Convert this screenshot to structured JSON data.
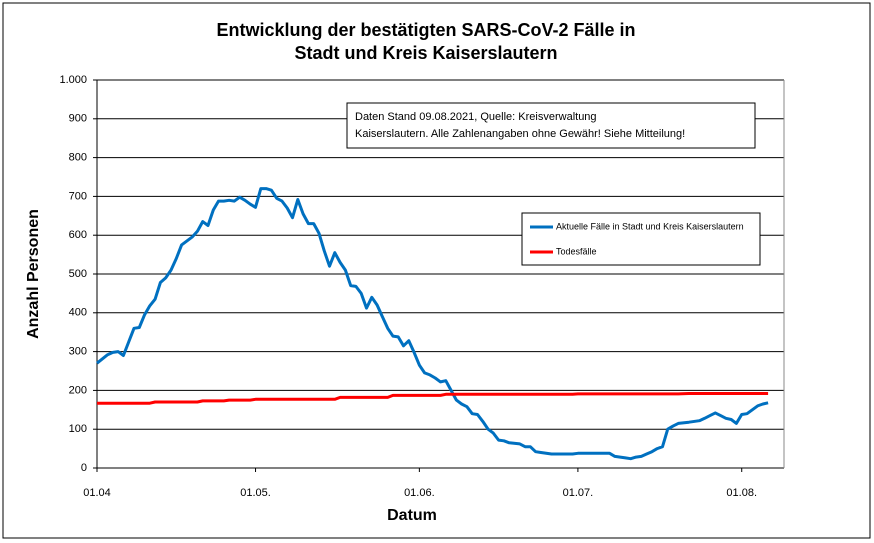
{
  "chart_data": {
    "type": "line",
    "title": [
      "Entwicklung der bestätigten SARS-CoV-2 Fälle in",
      "Stadt und Kreis Kaiserslautern"
    ],
    "annotation": [
      "Daten Stand 09.08.2021, Quelle: Kreisverwaltung",
      "Kaiserslautern. Alle Zahlenangaben ohne Gewähr! Siehe Mitteilung!"
    ],
    "xlabel": "Datum",
    "ylabel": "Anzahl Personen",
    "x": [
      "01.04",
      "03.04",
      "04.04",
      "05.04",
      "06.04",
      "08.04",
      "09.04",
      "10.04",
      "11.04",
      "12.04",
      "13.04",
      "14.04",
      "15.04",
      "16.04",
      "17.04",
      "19.04",
      "20.04",
      "21.04",
      "22.04",
      "23.04",
      "24.04",
      "25.04",
      "26.04",
      "27.04",
      "28.04",
      "29.04",
      "30.04",
      "01.05",
      "02.05",
      "03.05",
      "04.05",
      "05.05",
      "06.05",
      "07.05",
      "08.05",
      "09.05",
      "10.05",
      "11.05",
      "12.05",
      "13.05",
      "14.05",
      "15.05",
      "16.05",
      "17.05",
      "18.05",
      "19.05",
      "20.05",
      "21.05",
      "22.05",
      "23.05",
      "24.05",
      "25.05",
      "26.05",
      "27.05",
      "28.05",
      "29.05",
      "30.05",
      "31.05",
      "01.06",
      "02.06",
      "03.06",
      "04.06",
      "05.06",
      "06.06",
      "07.06",
      "08.06",
      "09.06",
      "10.06",
      "11.06",
      "12.06",
      "13.06",
      "14.06",
      "15.06",
      "16.06",
      "17.06",
      "18.06",
      "20.06",
      "21.06",
      "22.06",
      "23.06",
      "24.06",
      "26.06",
      "28.06",
      "30.06",
      "01.07",
      "03.07",
      "05.07",
      "07.07",
      "08.07",
      "10.07",
      "11.07",
      "12.07",
      "13.07",
      "14.07",
      "15.07",
      "16.07",
      "17.07",
      "18.07",
      "19.07",
      "20.07",
      "22.07",
      "24.07",
      "25.07",
      "26.07",
      "27.07",
      "28.07",
      "29.07",
      "30.07",
      "31.07",
      "01.08",
      "02.08",
      "03.08",
      "04.08",
      "05.08",
      "06.08"
    ],
    "series": [
      {
        "name": "Aktuelle Fälle in Stadt und Kreis Kaiserslautern",
        "color": "#0070c0",
        "values": [
          270,
          292,
          298,
          300,
          290,
          360,
          362,
          395,
          418,
          435,
          478,
          490,
          510,
          540,
          575,
          595,
          610,
          635,
          625,
          665,
          688,
          688,
          690,
          688,
          698,
          690,
          680,
          672,
          720,
          720,
          716,
          695,
          688,
          670,
          645,
          692,
          655,
          630,
          630,
          605,
          560,
          520,
          555,
          530,
          510,
          470,
          468,
          450,
          412,
          440,
          420,
          390,
          360,
          340,
          338,
          315,
          328,
          298,
          265,
          245,
          240,
          232,
          222,
          225,
          200,
          175,
          165,
          158,
          140,
          138,
          120,
          100,
          90,
          72,
          70,
          65,
          62,
          55,
          55,
          42,
          40,
          36,
          36,
          36,
          38,
          38,
          38,
          38,
          30,
          26,
          24,
          28,
          30,
          36,
          42,
          50,
          55,
          100,
          108,
          115,
          118,
          122,
          128,
          135,
          142,
          135,
          128,
          125,
          115,
          138,
          140,
          150,
          160,
          165,
          168
        ]
      },
      {
        "name": "Todesfälle",
        "color": "#ff0000",
        "values": [
          167,
          167,
          167,
          167,
          167,
          167,
          167,
          167,
          167,
          170,
          170,
          170,
          170,
          170,
          170,
          170,
          170,
          173,
          173,
          173,
          173,
          173,
          175,
          175,
          175,
          175,
          175,
          177,
          177,
          177,
          177,
          177,
          177,
          177,
          177,
          177,
          177,
          177,
          177,
          177,
          177,
          177,
          177,
          182,
          182,
          182,
          182,
          182,
          182,
          182,
          182,
          182,
          182,
          187,
          187,
          187,
          187,
          187,
          187,
          187,
          187,
          187,
          187,
          190,
          190,
          190,
          190,
          190,
          190,
          190,
          190,
          190,
          190,
          190,
          190,
          190,
          190,
          190,
          190,
          190,
          190,
          190,
          190,
          190,
          191,
          191,
          191,
          191,
          191,
          191,
          191,
          191,
          191,
          191,
          191,
          191,
          191,
          191,
          191,
          191,
          192,
          192,
          192,
          192,
          192,
          192,
          192,
          192,
          192,
          192,
          192,
          192,
          192,
          192,
          192
        ]
      }
    ],
    "xlim": [
      "01.04",
      "09.08"
    ],
    "xticks": [
      {
        "value": "01.04",
        "label": "01.04"
      },
      {
        "value": "01.05",
        "label": "01.05."
      },
      {
        "value": "01.06",
        "label": "01.06."
      },
      {
        "value": "01.07",
        "label": "01.07."
      },
      {
        "value": "01.08",
        "label": "01.08."
      }
    ],
    "ylim": [
      0,
      1000
    ],
    "yticks": [
      0,
      100,
      200,
      300,
      400,
      500,
      600,
      700,
      800,
      900,
      {
        "value": 1000,
        "label": "1.000"
      }
    ],
    "grid": true
  }
}
